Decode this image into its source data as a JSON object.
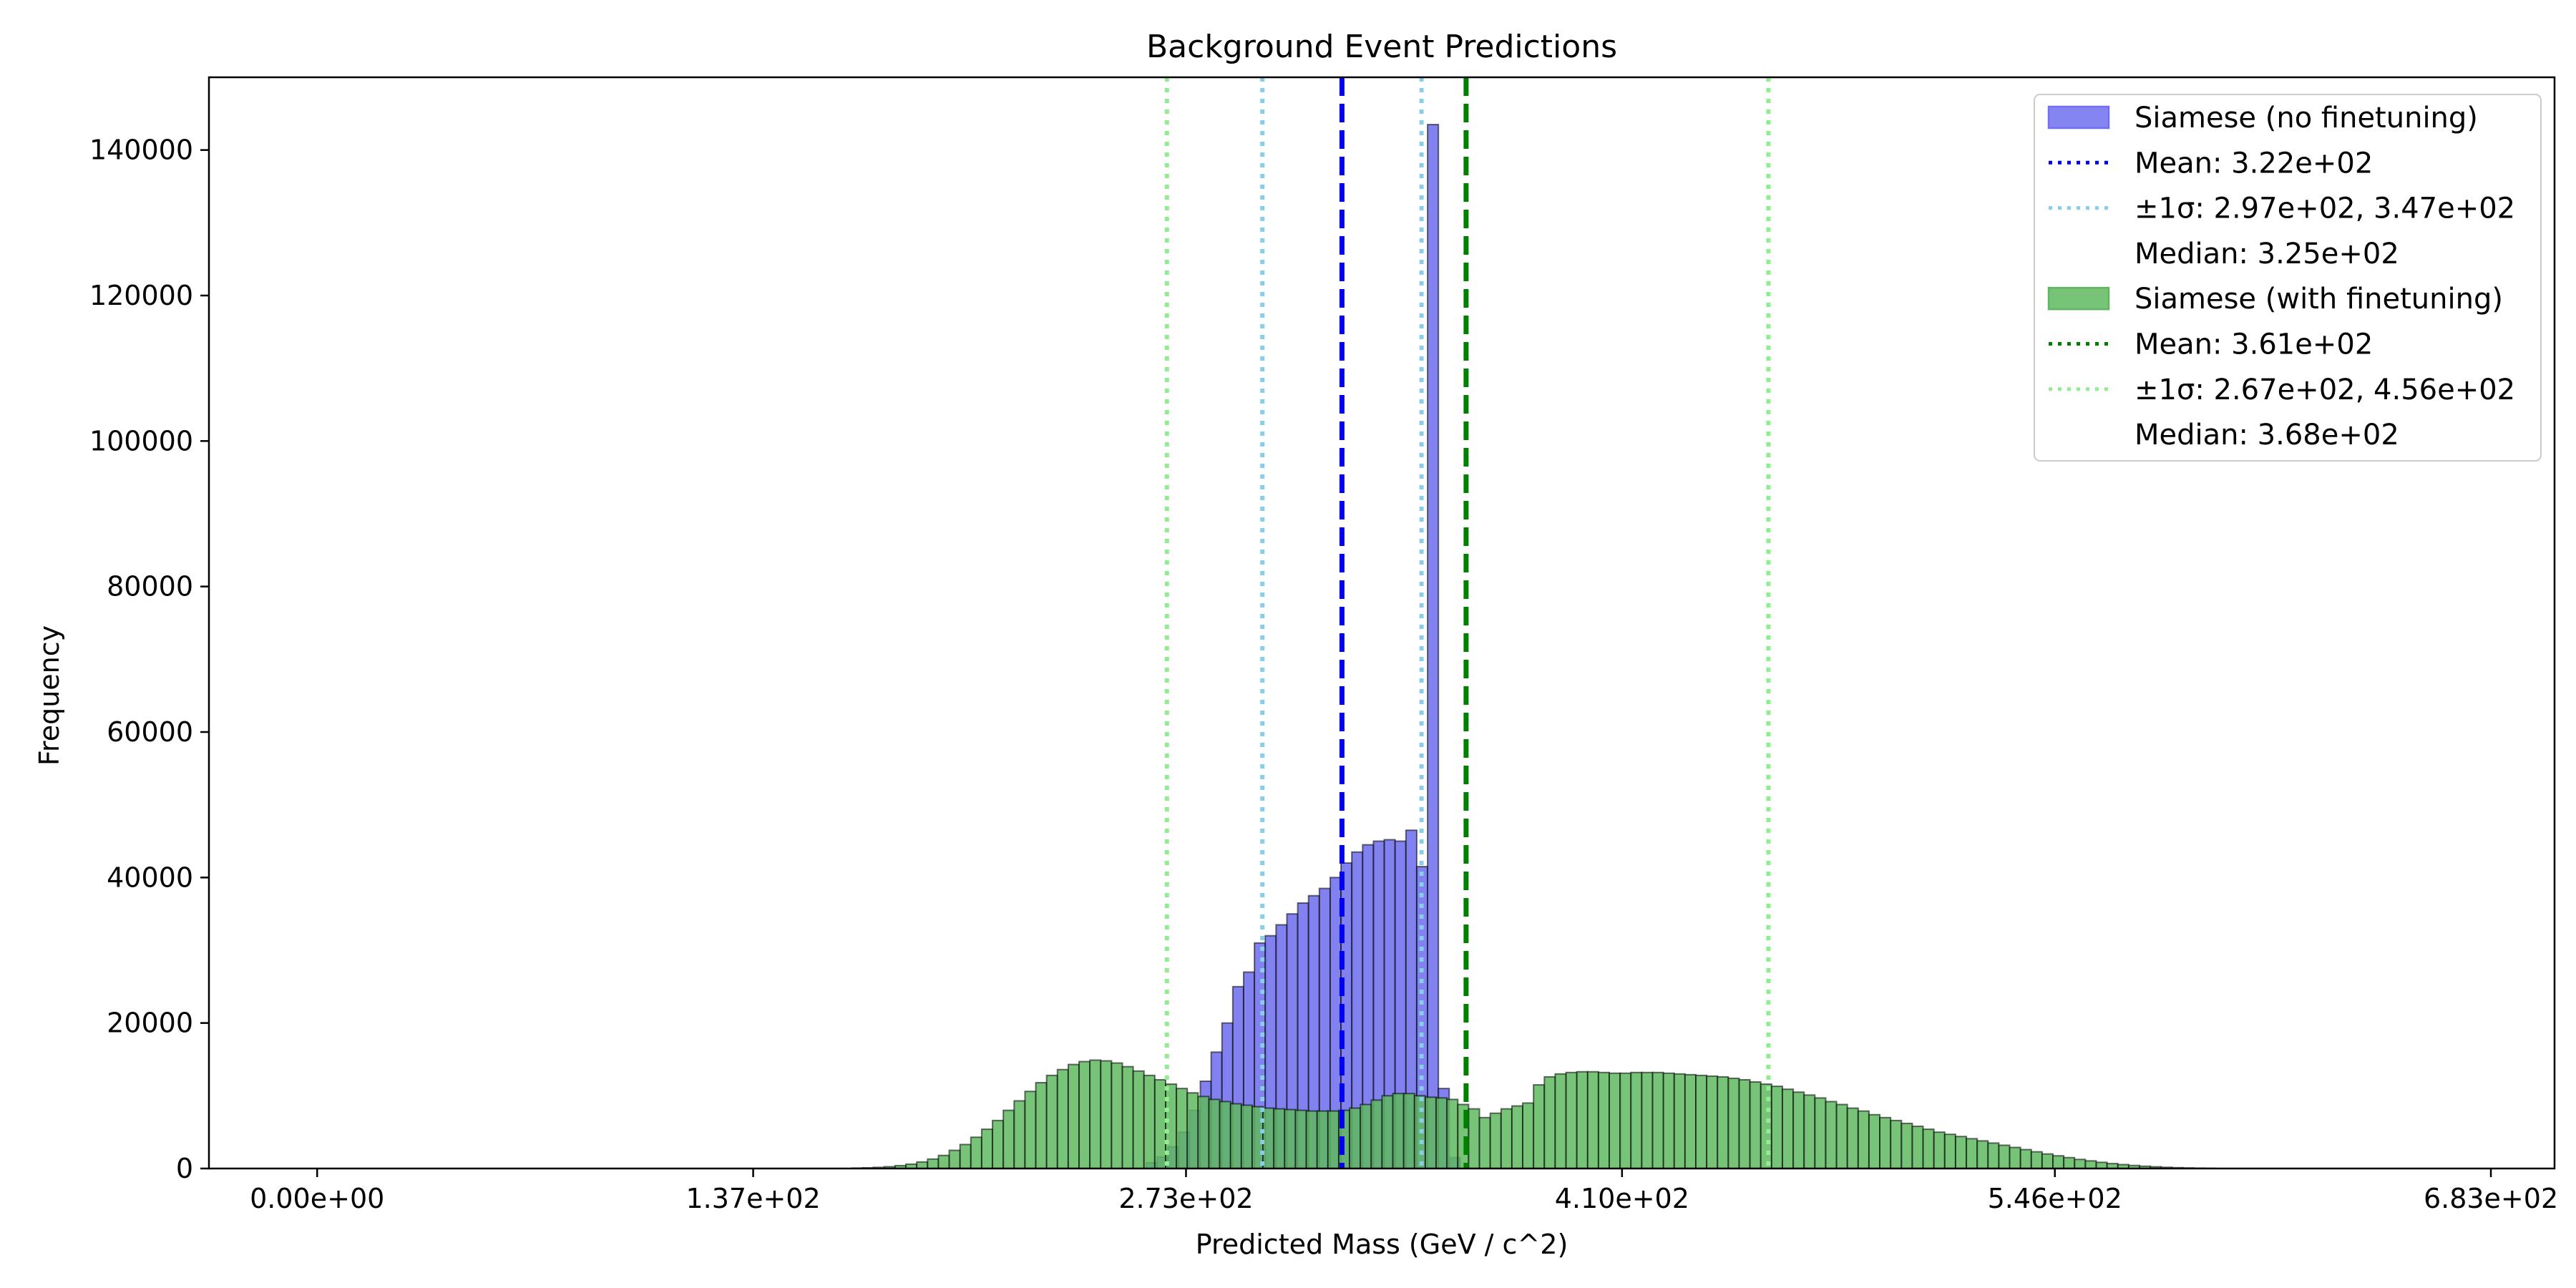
{
  "chart_data": {
    "type": "histogram",
    "title": "Background Event Predictions",
    "xlabel": "Predicted Mass (GeV / c^2)",
    "ylabel": "Frequency",
    "xlim": [
      -34,
      703
    ],
    "ylim": [
      0,
      150000
    ],
    "xticks": [
      0,
      137,
      273,
      410,
      546,
      683
    ],
    "xtick_labels": [
      "0.00e+00",
      "1.37e+02",
      "2.73e+02",
      "4.10e+02",
      "5.46e+02",
      "6.83e+02"
    ],
    "yticks": [
      0,
      20000,
      40000,
      60000,
      80000,
      100000,
      120000,
      140000
    ],
    "ytick_labels": [
      "0",
      "20000",
      "40000",
      "60000",
      "80000",
      "100000",
      "120000",
      "140000"
    ],
    "bin_width": 3.4,
    "legend_placement": "upper right",
    "series": [
      {
        "name": "Siamese (no finetuning)",
        "color": "#7070ee",
        "edge": "#000000",
        "bins": [
          [
            260.5,
            800
          ],
          [
            263.9,
            1600
          ],
          [
            267.3,
            3000
          ],
          [
            270.7,
            5000
          ],
          [
            274.1,
            8000
          ],
          [
            277.5,
            12000
          ],
          [
            280.9,
            16000
          ],
          [
            284.3,
            20000
          ],
          [
            287.7,
            25000
          ],
          [
            291.1,
            27000
          ],
          [
            294.5,
            31000
          ],
          [
            297.9,
            32000
          ],
          [
            301.3,
            33500
          ],
          [
            304.7,
            35000
          ],
          [
            308.1,
            36500
          ],
          [
            311.5,
            37500
          ],
          [
            314.9,
            38500
          ],
          [
            318.3,
            40000
          ],
          [
            321.7,
            42000
          ],
          [
            325.1,
            43500
          ],
          [
            328.5,
            44500
          ],
          [
            331.9,
            45000
          ],
          [
            335.3,
            45200
          ],
          [
            338.7,
            45000
          ],
          [
            342.1,
            46500
          ],
          [
            345.5,
            41500
          ],
          [
            348.9,
            143500
          ],
          [
            352.3,
            11000
          ],
          [
            355.7,
            1500
          ]
        ],
        "lines": [
          {
            "label": "Mean: 3.22e+02",
            "x": 322,
            "color": "#0000ee",
            "style": "dashed"
          },
          {
            "label": "±1σ: 2.97e+02, 3.47e+02",
            "x": [
              297,
              347
            ],
            "color": "#87cee8",
            "style": "dotted"
          },
          {
            "label": "Median: 3.25e+02",
            "x": 325
          }
        ]
      },
      {
        "name": "Siamese (with finetuning)",
        "color": "#5fb85f",
        "edge": "#000000",
        "bins": [
          [
            168,
            60
          ],
          [
            171.4,
            100
          ],
          [
            174.8,
            160
          ],
          [
            178.2,
            250
          ],
          [
            181.6,
            400
          ],
          [
            185,
            600
          ],
          [
            188.4,
            900
          ],
          [
            191.8,
            1300
          ],
          [
            195.2,
            1800
          ],
          [
            198.6,
            2500
          ],
          [
            202,
            3300
          ],
          [
            205.4,
            4300
          ],
          [
            208.8,
            5400
          ],
          [
            212.2,
            6600
          ],
          [
            215.6,
            8000
          ],
          [
            219,
            9300
          ],
          [
            222.4,
            10600
          ],
          [
            225.8,
            11800
          ],
          [
            229.2,
            12800
          ],
          [
            232.6,
            13600
          ],
          [
            236,
            14300
          ],
          [
            239.4,
            14700
          ],
          [
            242.8,
            14900
          ],
          [
            246.2,
            14800
          ],
          [
            249.6,
            14500
          ],
          [
            253,
            14000
          ],
          [
            256.4,
            13400
          ],
          [
            259.8,
            12800
          ],
          [
            263.2,
            12200
          ],
          [
            266.6,
            11600
          ],
          [
            270,
            11000
          ],
          [
            273.4,
            10400
          ],
          [
            276.8,
            9900
          ],
          [
            280.2,
            9500
          ],
          [
            283.6,
            9200
          ],
          [
            287,
            8900
          ],
          [
            290.4,
            8700
          ],
          [
            293.8,
            8500
          ],
          [
            297.2,
            8300
          ],
          [
            300.6,
            8200
          ],
          [
            304,
            8100
          ],
          [
            307.4,
            8000
          ],
          [
            310.8,
            7900
          ],
          [
            314.2,
            7900
          ],
          [
            317.6,
            7900
          ],
          [
            321,
            8000
          ],
          [
            324.4,
            8300
          ],
          [
            327.8,
            8800
          ],
          [
            331.2,
            9400
          ],
          [
            334.6,
            10000
          ],
          [
            338,
            10300
          ],
          [
            341.4,
            10300
          ],
          [
            344.8,
            10000
          ],
          [
            348.2,
            9800
          ],
          [
            351.6,
            9700
          ],
          [
            355,
            9500
          ],
          [
            358.4,
            8800
          ],
          [
            361.8,
            8200
          ],
          [
            365.2,
            7000
          ],
          [
            368.6,
            7600
          ],
          [
            372,
            8200
          ],
          [
            375.4,
            8600
          ],
          [
            378.8,
            9000
          ],
          [
            382.2,
            11500
          ],
          [
            385.6,
            12600
          ],
          [
            389,
            13000
          ],
          [
            392.4,
            13200
          ],
          [
            395.8,
            13300
          ],
          [
            399.2,
            13300
          ],
          [
            402.6,
            13200
          ],
          [
            406,
            13100
          ],
          [
            409.4,
            13100
          ],
          [
            412.8,
            13200
          ],
          [
            416.2,
            13200
          ],
          [
            419.6,
            13200
          ],
          [
            423,
            13100
          ],
          [
            426.4,
            13000
          ],
          [
            429.8,
            12900
          ],
          [
            433.2,
            12800
          ],
          [
            436.6,
            12700
          ],
          [
            440,
            12600
          ],
          [
            443.4,
            12400
          ],
          [
            446.8,
            12200
          ],
          [
            450.2,
            11900
          ],
          [
            453.6,
            11600
          ],
          [
            457,
            11300
          ],
          [
            460.4,
            10900
          ],
          [
            463.8,
            10500
          ],
          [
            467.2,
            10100
          ],
          [
            470.6,
            9700
          ],
          [
            474,
            9200
          ],
          [
            477.4,
            8800
          ],
          [
            480.8,
            8300
          ],
          [
            484.2,
            7900
          ],
          [
            487.6,
            7400
          ],
          [
            491,
            7000
          ],
          [
            494.4,
            6600
          ],
          [
            497.8,
            6200
          ],
          [
            501.2,
            5800
          ],
          [
            504.6,
            5400
          ],
          [
            508,
            5000
          ],
          [
            511.4,
            4700
          ],
          [
            514.8,
            4400
          ],
          [
            518.2,
            4100
          ],
          [
            521.6,
            3800
          ],
          [
            525,
            3500
          ],
          [
            528.4,
            3200
          ],
          [
            531.8,
            2900
          ],
          [
            535.2,
            2600
          ],
          [
            538.6,
            2300
          ],
          [
            542,
            2000
          ],
          [
            545.4,
            1750
          ],
          [
            548.8,
            1500
          ],
          [
            552.2,
            1250
          ],
          [
            555.6,
            1050
          ],
          [
            559,
            850
          ],
          [
            562.4,
            680
          ],
          [
            565.8,
            540
          ],
          [
            569.2,
            420
          ],
          [
            572.6,
            320
          ],
          [
            576,
            240
          ],
          [
            579.4,
            170
          ],
          [
            582.8,
            120
          ],
          [
            586.2,
            80
          ],
          [
            589.6,
            50
          ],
          [
            593,
            30
          ]
        ],
        "lines": [
          {
            "label": "Mean: 3.61e+02",
            "x": 361,
            "color": "#008000",
            "style": "dashed"
          },
          {
            "label": "±1σ: 2.67e+02, 4.56e+02",
            "x": [
              267,
              456
            ],
            "color": "#90ee90",
            "style": "dotted"
          },
          {
            "label": "Median: 3.68e+02",
            "x": 368
          }
        ]
      }
    ]
  }
}
